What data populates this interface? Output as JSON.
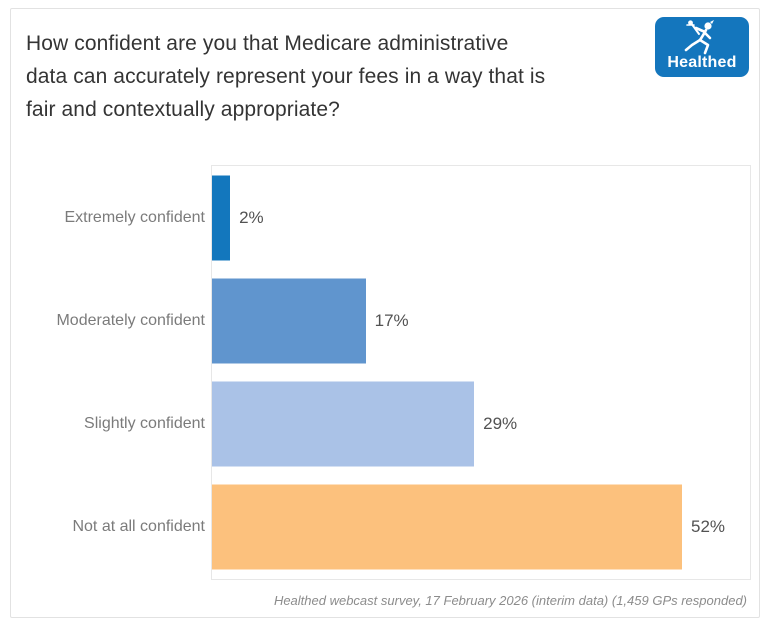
{
  "header": {
    "title": "How confident are you that Medicare administrative\ndata can accurately represent your fees in a way that is\nfair and contextually appropriate?",
    "logo": {
      "text": "Healthed",
      "icon": "hermes-runner-icon",
      "bg_color": "#1476bd"
    }
  },
  "chart_data": {
    "type": "bar",
    "orientation": "horizontal",
    "title": "How confident are you that Medicare administrative data can accurately represent your fees in a way that is fair and contextually appropriate?",
    "categories": [
      "Extremely confident",
      "Moderately confident",
      "Slightly confident",
      "Not at all confident"
    ],
    "values": [
      2,
      17,
      29,
      52
    ],
    "value_labels": [
      "2%",
      "17%",
      "29%",
      "52%"
    ],
    "bar_colors": [
      "#1377bd",
      "#6095ce",
      "#aac2e7",
      "#fcc17d"
    ],
    "unit": "%",
    "xlim": [
      0,
      56
    ],
    "grid": false,
    "value_axis_ticks_visible": false,
    "legend": "none"
  },
  "footer": {
    "caption": "Healthed webcast survey, 17 February 2026 (interim data) (1,459 GPs responded)"
  },
  "colors": {
    "pane_border": "#e7e7e7",
    "card_border": "#e2e2e2",
    "title_text": "#343434",
    "category_text": "#7b7b7b",
    "value_text": "#525252",
    "caption_text": "#8c8c8c"
  }
}
